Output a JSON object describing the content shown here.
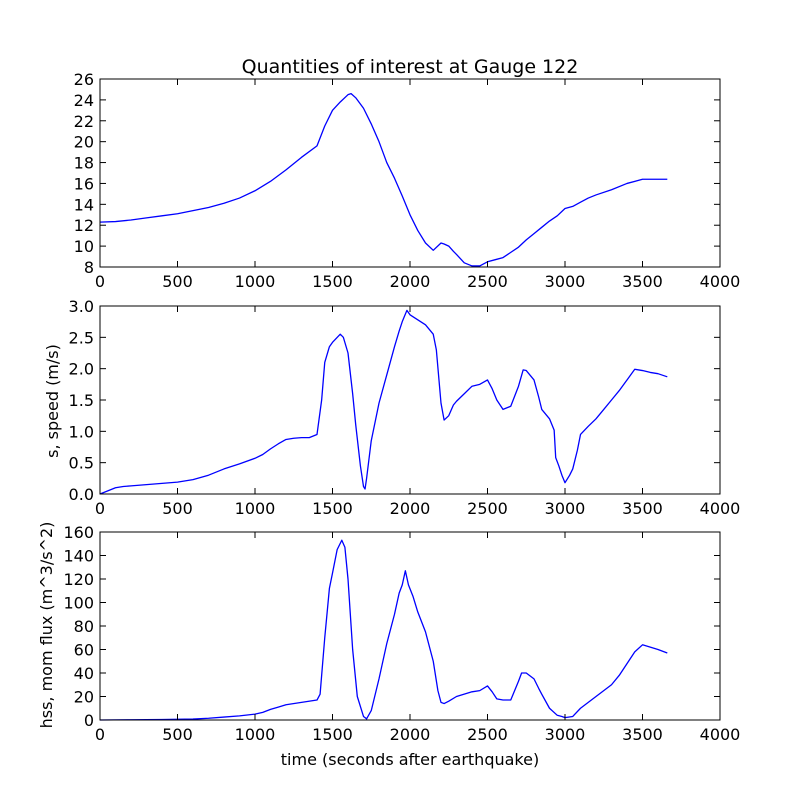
{
  "figure": {
    "title": "Quantities of interest at Gauge 122"
  },
  "colors": {
    "line": "#0000ff",
    "axes": "#000000",
    "background": "#ffffff"
  },
  "chart_data": [
    {
      "type": "line",
      "title": "Quantities of interest at Gauge 122",
      "xlabel": "",
      "ylabel": "",
      "xlim": [
        0,
        4000
      ],
      "ylim": [
        8,
        26
      ],
      "xticks": [
        0,
        500,
        1000,
        1500,
        2000,
        2500,
        3000,
        3500,
        4000
      ],
      "yticks": [
        8,
        10,
        12,
        14,
        16,
        18,
        20,
        22,
        24,
        26
      ],
      "grid": false,
      "x": [
        0,
        100,
        200,
        300,
        400,
        500,
        600,
        700,
        800,
        900,
        1000,
        1100,
        1200,
        1300,
        1400,
        1450,
        1500,
        1550,
        1600,
        1620,
        1650,
        1700,
        1750,
        1800,
        1850,
        1900,
        1950,
        2000,
        2050,
        2100,
        2150,
        2200,
        2220,
        2250,
        2280,
        2300,
        2350,
        2400,
        2450,
        2500,
        2550,
        2600,
        2650,
        2700,
        2750,
        2800,
        2850,
        2900,
        2950,
        3000,
        3050,
        3100,
        3150,
        3200,
        3300,
        3400,
        3500,
        3600,
        3660
      ],
      "y": [
        12.3,
        12.35,
        12.5,
        12.7,
        12.9,
        13.1,
        13.4,
        13.7,
        14.1,
        14.6,
        15.3,
        16.2,
        17.3,
        18.5,
        19.6,
        21.5,
        23.0,
        23.8,
        24.5,
        24.6,
        24.2,
        23.2,
        21.7,
        20.0,
        18.0,
        16.5,
        14.8,
        13.0,
        11.5,
        10.3,
        9.6,
        10.3,
        10.2,
        10.0,
        9.5,
        9.2,
        8.4,
        8.1,
        8.1,
        8.5,
        8.7,
        8.9,
        9.4,
        9.9,
        10.6,
        11.2,
        11.8,
        12.4,
        12.9,
        13.6,
        13.8,
        14.2,
        14.6,
        14.9,
        15.4,
        16.0,
        16.4,
        16.4,
        16.4
      ]
    },
    {
      "type": "line",
      "title": "",
      "xlabel": "",
      "ylabel": "s, speed (m/s)",
      "xlim": [
        0,
        4000
      ],
      "ylim": [
        0.0,
        3.0
      ],
      "xticks": [
        0,
        500,
        1000,
        1500,
        2000,
        2500,
        3000,
        3500,
        4000
      ],
      "yticks": [
        "0.0",
        "0.5",
        "1.0",
        "1.5",
        "2.0",
        "2.5",
        "3.0"
      ],
      "grid": false,
      "x": [
        0,
        50,
        100,
        150,
        200,
        300,
        400,
        500,
        600,
        700,
        800,
        900,
        1000,
        1050,
        1100,
        1150,
        1200,
        1250,
        1300,
        1350,
        1400,
        1430,
        1450,
        1480,
        1500,
        1550,
        1570,
        1600,
        1630,
        1650,
        1680,
        1700,
        1710,
        1720,
        1750,
        1800,
        1850,
        1900,
        1930,
        1950,
        1980,
        2000,
        2050,
        2100,
        2150,
        2170,
        2200,
        2220,
        2250,
        2280,
        2300,
        2350,
        2400,
        2450,
        2500,
        2530,
        2560,
        2600,
        2620,
        2650,
        2700,
        2730,
        2750,
        2800,
        2830,
        2850,
        2900,
        2930,
        2940,
        2960,
        2980,
        3000,
        3030,
        3050,
        3080,
        3100,
        3150,
        3200,
        3250,
        3300,
        3350,
        3400,
        3450,
        3500,
        3550,
        3600,
        3660
      ],
      "y": [
        0.0,
        0.05,
        0.1,
        0.12,
        0.13,
        0.15,
        0.17,
        0.19,
        0.23,
        0.3,
        0.4,
        0.48,
        0.57,
        0.63,
        0.72,
        0.8,
        0.87,
        0.89,
        0.9,
        0.9,
        0.95,
        1.5,
        2.1,
        2.35,
        2.42,
        2.55,
        2.5,
        2.25,
        1.6,
        1.1,
        0.45,
        0.12,
        0.08,
        0.25,
        0.85,
        1.45,
        1.9,
        2.35,
        2.6,
        2.75,
        2.93,
        2.86,
        2.78,
        2.7,
        2.55,
        2.3,
        1.45,
        1.18,
        1.25,
        1.42,
        1.48,
        1.6,
        1.72,
        1.75,
        1.82,
        1.68,
        1.5,
        1.35,
        1.37,
        1.4,
        1.72,
        1.98,
        1.97,
        1.82,
        1.55,
        1.35,
        1.2,
        1.02,
        0.58,
        0.45,
        0.3,
        0.18,
        0.3,
        0.4,
        0.7,
        0.95,
        1.08,
        1.2,
        1.35,
        1.5,
        1.65,
        1.82,
        1.99,
        1.97,
        1.94,
        1.92,
        1.87
      ]
    },
    {
      "type": "line",
      "title": "",
      "xlabel": "time (seconds after earthquake)",
      "ylabel": "hss, mom flux (m^3/s^2)",
      "xlim": [
        0,
        4000
      ],
      "ylim": [
        0,
        160
      ],
      "xticks": [
        0,
        500,
        1000,
        1500,
        2000,
        2500,
        3000,
        3500,
        4000
      ],
      "yticks": [
        0,
        20,
        40,
        60,
        80,
        100,
        120,
        140,
        160
      ],
      "grid": false,
      "x": [
        0,
        200,
        400,
        600,
        700,
        800,
        900,
        1000,
        1050,
        1100,
        1150,
        1200,
        1300,
        1400,
        1420,
        1450,
        1480,
        1500,
        1530,
        1560,
        1580,
        1600,
        1630,
        1660,
        1700,
        1720,
        1750,
        1800,
        1850,
        1900,
        1930,
        1950,
        1970,
        1990,
        2020,
        2050,
        2100,
        2150,
        2180,
        2200,
        2220,
        2250,
        2300,
        2350,
        2400,
        2450,
        2500,
        2530,
        2560,
        2600,
        2650,
        2700,
        2720,
        2750,
        2800,
        2830,
        2850,
        2900,
        2950,
        2980,
        3000,
        3050,
        3100,
        3150,
        3200,
        3250,
        3300,
        3350,
        3400,
        3450,
        3500,
        3550,
        3600,
        3660
      ],
      "y": [
        0,
        0.2,
        0.4,
        0.8,
        1.5,
        2.5,
        3.5,
        5,
        6.5,
        9,
        11,
        13,
        15,
        17,
        22,
        70,
        112,
        125,
        145,
        153,
        147,
        120,
        60,
        20,
        3,
        1,
        8,
        35,
        65,
        90,
        108,
        115,
        127,
        115,
        105,
        92,
        75,
        50,
        25,
        15,
        14,
        16,
        20,
        22,
        24,
        25,
        29,
        24,
        18,
        17,
        17,
        33,
        40,
        40,
        35,
        27,
        22,
        10,
        4,
        3,
        2,
        3,
        10,
        15,
        20,
        25,
        30,
        38,
        48,
        58,
        64,
        62,
        60,
        57
      ]
    }
  ]
}
